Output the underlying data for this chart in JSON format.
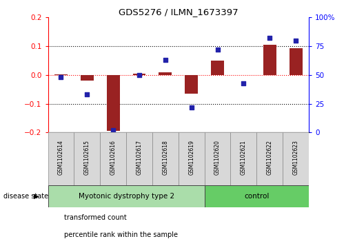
{
  "title": "GDS5276 / ILMN_1673397",
  "samples": [
    "GSM1102614",
    "GSM1102615",
    "GSM1102616",
    "GSM1102617",
    "GSM1102618",
    "GSM1102619",
    "GSM1102620",
    "GSM1102621",
    "GSM1102622",
    "GSM1102623"
  ],
  "transformed_count": [
    0.001,
    -0.02,
    -0.195,
    0.005,
    0.01,
    -0.065,
    0.05,
    0.0,
    0.105,
    0.093
  ],
  "percentile_rank": [
    48,
    33,
    2,
    50,
    63,
    22,
    72,
    43,
    82,
    80
  ],
  "bar_color": "#992222",
  "scatter_color": "#2222AA",
  "ylim_left": [
    -0.2,
    0.2
  ],
  "ylim_right": [
    0,
    100
  ],
  "yticks_left": [
    -0.2,
    -0.1,
    0.0,
    0.1,
    0.2
  ],
  "yticks_right": [
    0,
    25,
    50,
    75,
    100
  ],
  "groups": [
    {
      "label": "Myotonic dystrophy type 2",
      "indices": [
        0,
        1,
        2,
        3,
        4,
        5
      ],
      "color": "#aaddaa"
    },
    {
      "label": "control",
      "indices": [
        6,
        7,
        8,
        9
      ],
      "color": "#66cc66"
    }
  ],
  "disease_state_label": "disease state",
  "legend": [
    {
      "label": "transformed count",
      "color": "#cc2222"
    },
    {
      "label": "percentile rank within the sample",
      "color": "#2222cc"
    }
  ],
  "background_color": "#ffffff",
  "plot_bg": "#ffffff",
  "dotted_black": [
    -0.1,
    0.1
  ],
  "dotted_red": 0.0
}
